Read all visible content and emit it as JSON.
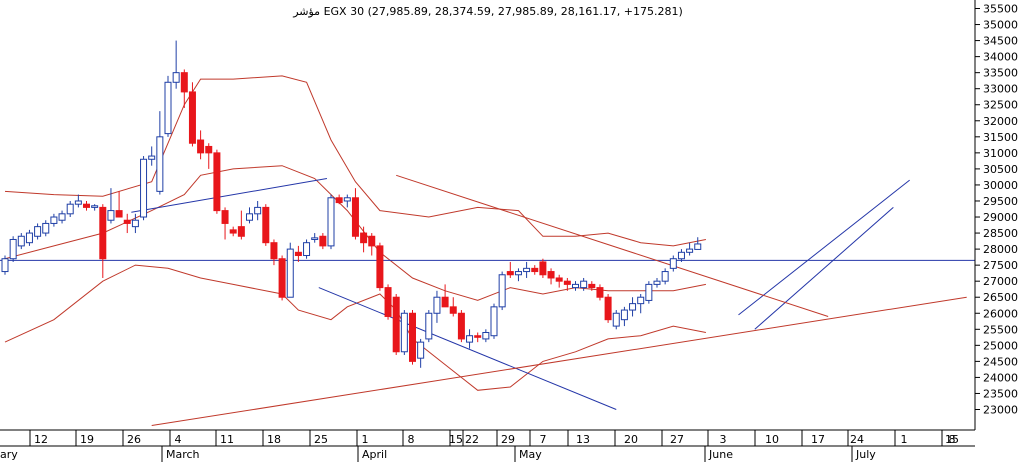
{
  "chart_data": {
    "type": "candlestick",
    "title": "مؤشر EGX 30 (27,985.89, 28,374.59, 27,985.89, 28,161.17, +175.281)",
    "ylim": [
      22500,
      35600
    ],
    "y_ticks": [
      23000,
      23500,
      24000,
      24500,
      25000,
      25500,
      26000,
      26500,
      27000,
      27500,
      28000,
      28500,
      29000,
      29500,
      30000,
      30500,
      31000,
      31500,
      32000,
      32500,
      33000,
      33500,
      34000,
      34500,
      35000,
      35500
    ],
    "x_day_labels": [
      "12",
      "19",
      "26",
      "4",
      "11",
      "18",
      "25",
      "1",
      "8",
      "15",
      "22",
      "29",
      "7",
      "13",
      "20",
      "27",
      "3",
      "10",
      "17",
      "24",
      "1",
      "8",
      "15"
    ],
    "x_month_labels": [
      "ary",
      "March",
      "April",
      "May",
      "June",
      "July"
    ],
    "horizontal_line": 27650,
    "up_color": "#ffffff",
    "down_color": "#e8161b",
    "outline_color": "#1f3fa6",
    "band_color": "#c0392b",
    "trend_blue": "#2436a8",
    "trend_red": "#c0392b",
    "candles": [
      {
        "o": 27300,
        "h": 27800,
        "l": 27200,
        "c": 27700
      },
      {
        "o": 27700,
        "h": 28400,
        "l": 27600,
        "c": 28300
      },
      {
        "o": 28100,
        "h": 28500,
        "l": 28000,
        "c": 28400
      },
      {
        "o": 28200,
        "h": 28600,
        "l": 28100,
        "c": 28500
      },
      {
        "o": 28400,
        "h": 28800,
        "l": 28300,
        "c": 28700
      },
      {
        "o": 28500,
        "h": 28900,
        "l": 28400,
        "c": 28800
      },
      {
        "o": 28800,
        "h": 29100,
        "l": 28700,
        "c": 29000
      },
      {
        "o": 28900,
        "h": 29200,
        "l": 28800,
        "c": 29100
      },
      {
        "o": 29100,
        "h": 29500,
        "l": 29000,
        "c": 29400
      },
      {
        "o": 29400,
        "h": 29700,
        "l": 29300,
        "c": 29500
      },
      {
        "o": 29400,
        "h": 29500,
        "l": 29200,
        "c": 29300
      },
      {
        "o": 29300,
        "h": 29400,
        "l": 29200,
        "c": 29350
      },
      {
        "o": 29300,
        "h": 29400,
        "l": 27100,
        "c": 27700
      },
      {
        "o": 28900,
        "h": 29900,
        "l": 28800,
        "c": 29200
      },
      {
        "o": 29200,
        "h": 29800,
        "l": 29000,
        "c": 29000
      },
      {
        "o": 28900,
        "h": 29100,
        "l": 28500,
        "c": 28800
      },
      {
        "o": 28700,
        "h": 29100,
        "l": 28500,
        "c": 28900
      },
      {
        "o": 29000,
        "h": 30900,
        "l": 28900,
        "c": 30800
      },
      {
        "o": 30800,
        "h": 31200,
        "l": 30600,
        "c": 30900
      },
      {
        "o": 29800,
        "h": 32300,
        "l": 29700,
        "c": 31500
      },
      {
        "o": 31600,
        "h": 33400,
        "l": 31500,
        "c": 33200
      },
      {
        "o": 33200,
        "h": 34500,
        "l": 33000,
        "c": 33500
      },
      {
        "o": 33500,
        "h": 33600,
        "l": 32400,
        "c": 32900
      },
      {
        "o": 32900,
        "h": 33200,
        "l": 31200,
        "c": 31300
      },
      {
        "o": 31400,
        "h": 31700,
        "l": 30800,
        "c": 31000
      },
      {
        "o": 31200,
        "h": 31300,
        "l": 30500,
        "c": 31000
      },
      {
        "o": 31000,
        "h": 31100,
        "l": 29100,
        "c": 29200
      },
      {
        "o": 29200,
        "h": 29300,
        "l": 28300,
        "c": 28800
      },
      {
        "o": 28600,
        "h": 28700,
        "l": 28400,
        "c": 28500
      },
      {
        "o": 28700,
        "h": 29200,
        "l": 28300,
        "c": 28400
      },
      {
        "o": 28900,
        "h": 29300,
        "l": 28800,
        "c": 29100
      },
      {
        "o": 29100,
        "h": 29500,
        "l": 28900,
        "c": 29300
      },
      {
        "o": 29300,
        "h": 29400,
        "l": 28100,
        "c": 28200
      },
      {
        "o": 28200,
        "h": 28300,
        "l": 27500,
        "c": 27700
      },
      {
        "o": 27700,
        "h": 27800,
        "l": 26400,
        "c": 26500
      },
      {
        "o": 26500,
        "h": 28200,
        "l": 26500,
        "c": 28000
      },
      {
        "o": 27900,
        "h": 28100,
        "l": 27600,
        "c": 27800
      },
      {
        "o": 27800,
        "h": 28300,
        "l": 27700,
        "c": 28200
      },
      {
        "o": 28300,
        "h": 28500,
        "l": 28200,
        "c": 28350
      },
      {
        "o": 28400,
        "h": 28500,
        "l": 28000,
        "c": 28100
      },
      {
        "o": 28100,
        "h": 29700,
        "l": 28000,
        "c": 29600
      },
      {
        "o": 29600,
        "h": 29700,
        "l": 29400,
        "c": 29450
      },
      {
        "o": 29500,
        "h": 29700,
        "l": 29300,
        "c": 29600
      },
      {
        "o": 29600,
        "h": 29900,
        "l": 28300,
        "c": 28400
      },
      {
        "o": 28500,
        "h": 28700,
        "l": 27900,
        "c": 28200
      },
      {
        "o": 28400,
        "h": 28500,
        "l": 27800,
        "c": 28100
      },
      {
        "o": 28100,
        "h": 28200,
        "l": 26700,
        "c": 26800
      },
      {
        "o": 26800,
        "h": 26900,
        "l": 25800,
        "c": 25900
      },
      {
        "o": 26500,
        "h": 26600,
        "l": 24700,
        "c": 24800
      },
      {
        "o": 24800,
        "h": 26100,
        "l": 24700,
        "c": 26000
      },
      {
        "o": 26000,
        "h": 26100,
        "l": 24400,
        "c": 24500
      },
      {
        "o": 24600,
        "h": 25200,
        "l": 24300,
        "c": 25100
      },
      {
        "o": 25200,
        "h": 26100,
        "l": 25100,
        "c": 26000
      },
      {
        "o": 26000,
        "h": 26700,
        "l": 25700,
        "c": 26500
      },
      {
        "o": 26500,
        "h": 26900,
        "l": 26300,
        "c": 26200
      },
      {
        "o": 26200,
        "h": 26500,
        "l": 25900,
        "c": 26000
      },
      {
        "o": 26000,
        "h": 26100,
        "l": 25100,
        "c": 25200
      },
      {
        "o": 25100,
        "h": 25500,
        "l": 24900,
        "c": 25300
      },
      {
        "o": 25300,
        "h": 25400,
        "l": 25100,
        "c": 25250
      },
      {
        "o": 25200,
        "h": 25500,
        "l": 25100,
        "c": 25400
      },
      {
        "o": 25300,
        "h": 26300,
        "l": 25200,
        "c": 26200
      },
      {
        "o": 26200,
        "h": 27300,
        "l": 26100,
        "c": 27200
      },
      {
        "o": 27300,
        "h": 27600,
        "l": 27100,
        "c": 27200
      },
      {
        "o": 27200,
        "h": 27400,
        "l": 27000,
        "c": 27300
      },
      {
        "o": 27300,
        "h": 27600,
        "l": 27100,
        "c": 27400
      },
      {
        "o": 27400,
        "h": 27500,
        "l": 27200,
        "c": 27300
      },
      {
        "o": 27600,
        "h": 27700,
        "l": 27100,
        "c": 27200
      },
      {
        "o": 27300,
        "h": 27400,
        "l": 26900,
        "c": 27100
      },
      {
        "o": 27100,
        "h": 27200,
        "l": 26800,
        "c": 27000
      },
      {
        "o": 27000,
        "h": 27100,
        "l": 26700,
        "c": 26900
      },
      {
        "o": 26800,
        "h": 27000,
        "l": 26700,
        "c": 26900
      },
      {
        "o": 26800,
        "h": 27100,
        "l": 26700,
        "c": 27000
      },
      {
        "o": 26900,
        "h": 27000,
        "l": 26700,
        "c": 26800
      },
      {
        "o": 26800,
        "h": 26900,
        "l": 26400,
        "c": 26500
      },
      {
        "o": 26500,
        "h": 26600,
        "l": 25700,
        "c": 25800
      },
      {
        "o": 25600,
        "h": 26100,
        "l": 25500,
        "c": 26000
      },
      {
        "o": 25800,
        "h": 26200,
        "l": 25600,
        "c": 26100
      },
      {
        "o": 26100,
        "h": 26500,
        "l": 25900,
        "c": 26300
      },
      {
        "o": 26300,
        "h": 26600,
        "l": 26000,
        "c": 26500
      },
      {
        "o": 26400,
        "h": 27000,
        "l": 26300,
        "c": 26900
      },
      {
        "o": 26900,
        "h": 27100,
        "l": 26800,
        "c": 27000
      },
      {
        "o": 27000,
        "h": 27400,
        "l": 26900,
        "c": 27300
      },
      {
        "o": 27400,
        "h": 27800,
        "l": 27300,
        "c": 27700
      },
      {
        "o": 27700,
        "h": 28000,
        "l": 27600,
        "c": 27900
      },
      {
        "o": 27900,
        "h": 28200,
        "l": 27800,
        "c": 28000
      },
      {
        "o": 27990,
        "h": 28370,
        "l": 27990,
        "c": 28160
      }
    ],
    "band_upper": [
      [
        0,
        29800
      ],
      [
        6,
        29700
      ],
      [
        12,
        29650
      ],
      [
        18,
        30100
      ],
      [
        22,
        32500
      ],
      [
        24,
        33300
      ],
      [
        28,
        33300
      ],
      [
        34,
        33400
      ],
      [
        37,
        33200
      ],
      [
        40,
        31400
      ],
      [
        43,
        30100
      ],
      [
        46,
        29200
      ],
      [
        52,
        29000
      ],
      [
        58,
        29300
      ],
      [
        63,
        29200
      ],
      [
        66,
        28400
      ],
      [
        70,
        28400
      ],
      [
        74,
        28500
      ],
      [
        78,
        28200
      ],
      [
        82,
        28100
      ],
      [
        86,
        28300
      ]
    ],
    "band_middle": [
      [
        0,
        27700
      ],
      [
        6,
        28100
      ],
      [
        12,
        28500
      ],
      [
        18,
        29200
      ],
      [
        22,
        29700
      ],
      [
        24,
        30300
      ],
      [
        28,
        30500
      ],
      [
        34,
        30600
      ],
      [
        38,
        30200
      ],
      [
        42,
        29200
      ],
      [
        46,
        27900
      ],
      [
        50,
        27100
      ],
      [
        54,
        26700
      ],
      [
        58,
        26400
      ],
      [
        62,
        26800
      ],
      [
        66,
        26600
      ],
      [
        70,
        26800
      ],
      [
        74,
        26700
      ],
      [
        78,
        26700
      ],
      [
        82,
        26700
      ],
      [
        86,
        26900
      ]
    ],
    "band_lower": [
      [
        0,
        25100
      ],
      [
        6,
        25800
      ],
      [
        12,
        27000
      ],
      [
        16,
        27500
      ],
      [
        20,
        27400
      ],
      [
        24,
        27100
      ],
      [
        28,
        26900
      ],
      [
        34,
        26600
      ],
      [
        36,
        26100
      ],
      [
        40,
        25800
      ],
      [
        42,
        26200
      ],
      [
        46,
        26600
      ],
      [
        48,
        26100
      ],
      [
        50,
        25200
      ],
      [
        54,
        24400
      ],
      [
        58,
        23600
      ],
      [
        62,
        23700
      ],
      [
        66,
        24500
      ],
      [
        70,
        24800
      ],
      [
        74,
        25200
      ],
      [
        78,
        25300
      ],
      [
        82,
        25600
      ],
      [
        86,
        25400
      ]
    ],
    "trendlines_blue": [
      [
        [
          15.5,
          29150
        ],
        [
          39.5,
          30200
        ]
      ],
      [
        [
          38.5,
          26800
        ],
        [
          75,
          23000
        ]
      ],
      [
        [
          90,
          25950
        ],
        [
          111,
          30150
        ]
      ],
      [
        [
          92,
          25500
        ],
        [
          109,
          29300
        ]
      ]
    ],
    "trendlines_red": [
      [
        [
          48,
          30300
        ],
        [
          101,
          25900
        ]
      ],
      [
        [
          18,
          22500
        ],
        [
          118,
          26500
        ]
      ]
    ]
  }
}
